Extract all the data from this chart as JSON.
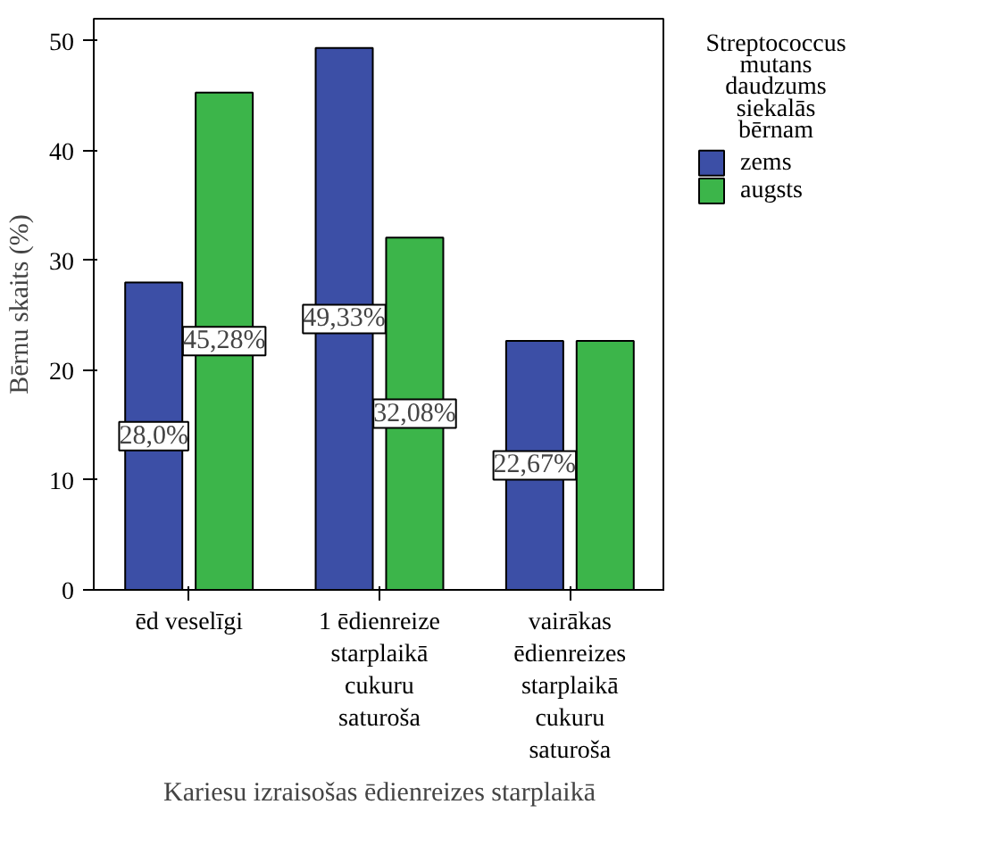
{
  "chart_data": {
    "type": "bar",
    "xlabel": "Kariesu izraisošas ēdienreizes starplaikā",
    "ylabel": "Bērnu skaits (%)",
    "legend_title": "Streptococcus mutans daudzums siekalās bērnam",
    "categories": [
      "ēd veselīgi",
      "1 ēdienreize starplaikā cukuru saturoša",
      "vairākas ēdienreizes starplaikā cukuru saturoša"
    ],
    "series": [
      {
        "name": "zems",
        "color": "#3c4fa6",
        "values": [
          28.0,
          49.33,
          22.67
        ],
        "value_labels": [
          "28,0%",
          "49,33%",
          "22,67%"
        ]
      },
      {
        "name": "augsts",
        "color": "#3cb54a",
        "values": [
          45.28,
          32.08,
          22.67
        ],
        "value_labels": [
          "45,28%",
          "32,08%",
          null
        ]
      }
    ],
    "ylim": [
      0,
      52
    ],
    "yticks": [
      0,
      10,
      20,
      30,
      40,
      50
    ],
    "legend": "right"
  }
}
